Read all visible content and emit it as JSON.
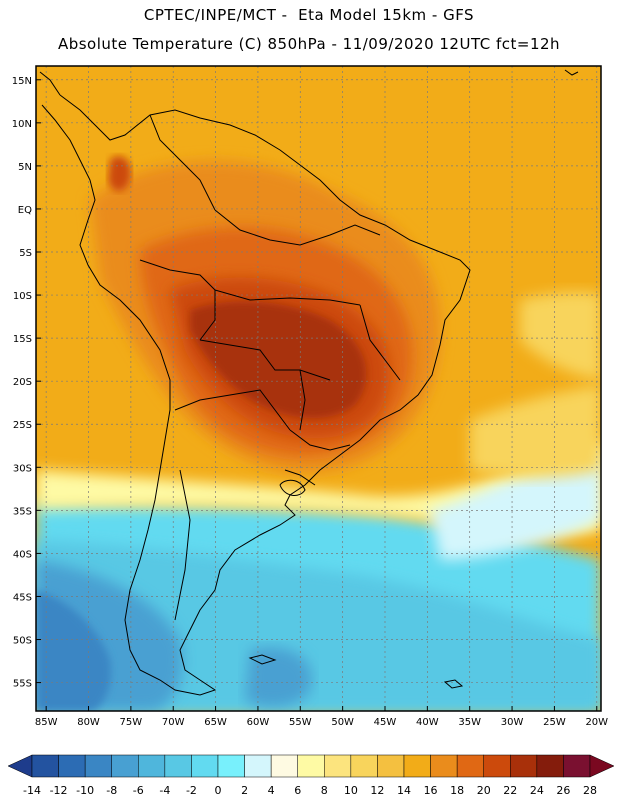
{
  "title_line1": "CPTEC/INPE/MCT -  Eta Model 15km - GFS",
  "title_line2": "Absolute Temperature (C) 850hPa - 11/09/2020 12UTC fct=12h",
  "map": {
    "lat_labels": [
      "15N",
      "10N",
      "5N",
      "EQ",
      "5S",
      "10S",
      "15S",
      "20S",
      "25S",
      "30S",
      "35S",
      "40S",
      "45S",
      "50S",
      "55S"
    ],
    "lon_labels": [
      "85W",
      "80W",
      "75W",
      "70W",
      "65W",
      "60W",
      "55W",
      "50W",
      "45W",
      "40W",
      "35W",
      "30W",
      "25W",
      "20W"
    ],
    "lat_values": [
      15,
      10,
      5,
      0,
      -5,
      -10,
      -15,
      -20,
      -25,
      -30,
      -35,
      -40,
      -45,
      -50,
      -55
    ],
    "lon_values": [
      -85,
      -80,
      -75,
      -70,
      -65,
      -60,
      -55,
      -50,
      -45,
      -40,
      -35,
      -30,
      -25,
      -20
    ]
  },
  "colorbar": {
    "labels": [
      "-14",
      "-12",
      "-10",
      "-8",
      "-6",
      "-4",
      "-2",
      "0",
      "2",
      "4",
      "6",
      "8",
      "10",
      "12",
      "14",
      "16",
      "18",
      "20",
      "22",
      "24",
      "26",
      "28"
    ],
    "colors": [
      "#1e3c8c",
      "#2353a0",
      "#2c6cb4",
      "#3a86c4",
      "#48a0d2",
      "#4fb6dc",
      "#58c8e4",
      "#62daf0",
      "#78f0fc",
      "#d4f6fc",
      "#fefae2",
      "#fefaa4",
      "#fce47e",
      "#f8d45c",
      "#f4c040",
      "#f2ac18",
      "#ea8c1c",
      "#e06814",
      "#cc4a0c",
      "#a8300a",
      "#841c0c",
      "#7a1030",
      "#7a0820"
    ]
  }
}
